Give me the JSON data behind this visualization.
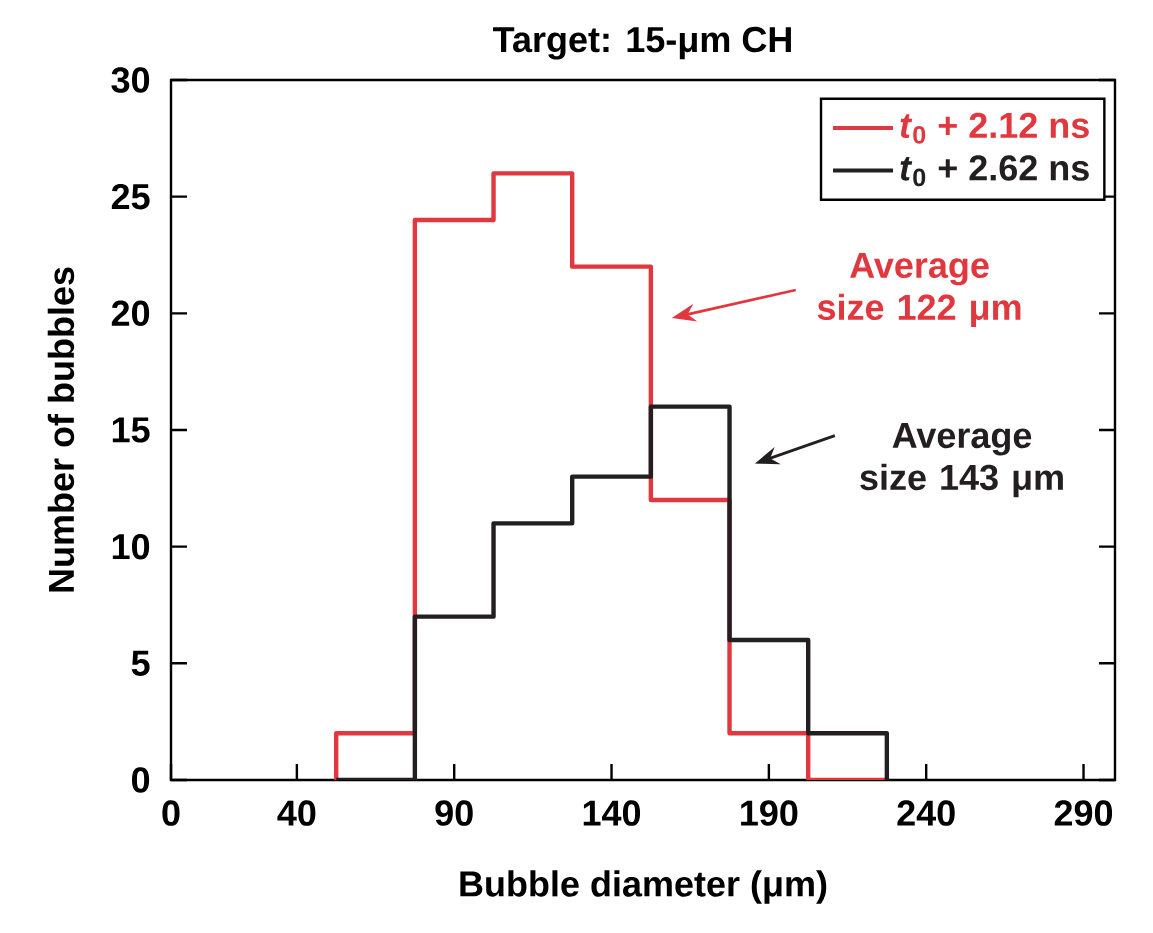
{
  "chart_data": {
    "type": "histogram",
    "title": "Target: 15-μm CH",
    "xlabel": "Bubble diameter (μm)",
    "ylabel": "Number of bubbles",
    "bins": [
      52.5,
      77.5,
      102.5,
      127.5,
      152.5,
      177.5,
      202.5,
      227.5
    ],
    "series": [
      {
        "name": "*t*$_{0}$ + 2.12 ns",
        "color": "#e0383e",
        "values": [
          2,
          24,
          26,
          22,
          12,
          2,
          0
        ]
      },
      {
        "name": "*t*$_{0}$ + 2.62 ns",
        "color": "#231f20",
        "values": [
          0,
          7,
          11,
          13,
          16,
          6,
          2
        ]
      }
    ],
    "xlim": [
      0,
      300
    ],
    "xticks": [
      0,
      40,
      90,
      140,
      190,
      240,
      290
    ],
    "ylim": [
      0,
      30
    ],
    "yticks": [
      0,
      5,
      10,
      15,
      20,
      25,
      30
    ],
    "legend": "top right",
    "grid": false,
    "annotations": [
      "Average size 122 μm",
      "Average size 143 μm"
    ]
  }
}
